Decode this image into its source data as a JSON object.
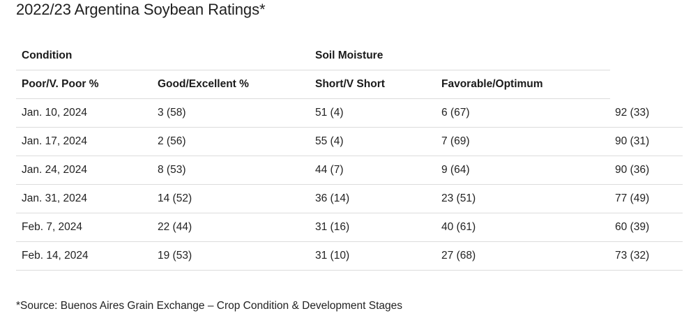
{
  "title": "2022/23 Argentina Soybean Ratings*",
  "table": {
    "group_headers": {
      "condition": "Condition",
      "soil_moisture": "Soil Moisture"
    },
    "column_headers": [
      "Poor/V. Poor %",
      "Good/Excellent %",
      "Short/V Short",
      "Favorable/Optimum"
    ],
    "rows": [
      [
        "Jan. 10, 2024",
        "3 (58)",
        "51 (4)",
        "6 (67)",
        "92 (33)"
      ],
      [
        "Jan. 17, 2024",
        "2 (56)",
        "55 (4)",
        "7 (69)",
        "90 (31)"
      ],
      [
        "Jan. 24, 2024",
        "8 (53)",
        "44 (7)",
        "9 (64)",
        "90 (36)"
      ],
      [
        "Jan. 31, 2024",
        "14 (52)",
        "36 (14)",
        "23 (51)",
        "77 (49)"
      ],
      [
        "Feb. 7, 2024",
        "22 (44)",
        "31 (16)",
        "40 (61)",
        "60 (39)"
      ],
      [
        "Feb. 14, 2024",
        "19 (53)",
        "31 (10)",
        "27 (68)",
        "73 (32)"
      ]
    ]
  },
  "footnote": "*Source: Buenos Aires Grain Exchange – Crop Condition & Development Stages",
  "colors": {
    "text": "#1a1a1a",
    "divider": "#dcdcdc",
    "background": "#ffffff"
  }
}
